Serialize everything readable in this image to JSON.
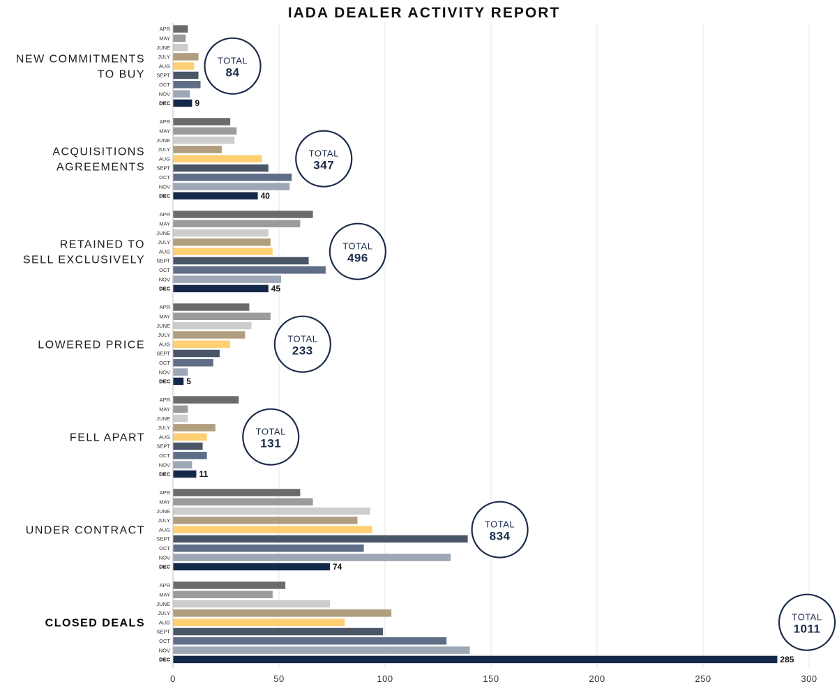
{
  "chart_data": {
    "type": "bar",
    "orientation": "horizontal",
    "title": "IADA DEALER ACTIVITY REPORT",
    "xlim": [
      0,
      300
    ],
    "x_ticks": [
      0,
      50,
      100,
      150,
      200,
      250,
      300
    ],
    "grid": "vertical",
    "months": [
      "APR",
      "MAY",
      "JUNE",
      "JULY",
      "AUG",
      "SEPT",
      "OCT",
      "NOV",
      "DEC"
    ],
    "month_colors": [
      "#6b6b6b",
      "#9b9b9b",
      "#cdcdcd",
      "#b09e7e",
      "#ffcf73",
      "#4a5568",
      "#5f6e86",
      "#9da7b5",
      "#14284a"
    ],
    "total_word": "TOTAL",
    "groups": [
      {
        "label": [
          "NEW COMMITMENTS",
          "TO BUY"
        ],
        "bold": false,
        "values": [
          7,
          6,
          7,
          12,
          10,
          12,
          13,
          8,
          9
        ],
        "last_label": "9",
        "total": "84"
      },
      {
        "label": [
          "ACQUISITIONS",
          "AGREEMENTS"
        ],
        "bold": false,
        "values": [
          27,
          30,
          29,
          23,
          42,
          45,
          56,
          55,
          40
        ],
        "last_label": "40",
        "total": "347"
      },
      {
        "label": [
          "RETAINED TO",
          "SELL EXCLUSIVELY"
        ],
        "bold": false,
        "values": [
          66,
          60,
          45,
          46,
          47,
          64,
          72,
          51,
          45
        ],
        "last_label": "45",
        "total": "496"
      },
      {
        "label": [
          "LOWERED PRICE"
        ],
        "bold": false,
        "values": [
          36,
          46,
          37,
          34,
          27,
          22,
          19,
          7,
          5
        ],
        "last_label": "5",
        "total": "233"
      },
      {
        "label": [
          "FELL APART"
        ],
        "bold": false,
        "values": [
          31,
          7,
          7,
          20,
          16,
          14,
          16,
          9,
          11
        ],
        "last_label": "11",
        "total": "131"
      },
      {
        "label": [
          "UNDER CONTRACT"
        ],
        "bold": false,
        "values": [
          60,
          66,
          93,
          87,
          94,
          139,
          90,
          131,
          74
        ],
        "last_label": "74",
        "total": "834"
      },
      {
        "label": [
          "CLOSED DEALS"
        ],
        "bold": true,
        "values": [
          53,
          47,
          74,
          103,
          81,
          99,
          129,
          140,
          285
        ],
        "last_label": "285",
        "total": "1011"
      }
    ]
  }
}
